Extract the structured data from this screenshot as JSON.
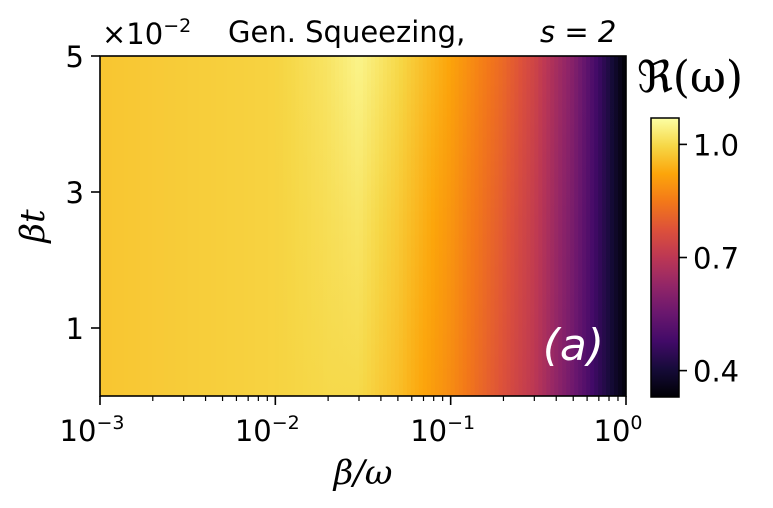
{
  "chart_data": {
    "type": "heatmap",
    "title": "Gen. Squeezing,",
    "title_param": "s = 2",
    "xlabel": "β/ω",
    "ylabel": "βt",
    "x_scale": "log",
    "xlim": [
      0.001,
      1
    ],
    "x_ticks": [
      {
        "value": 0.001,
        "base": "10",
        "exp": "−3"
      },
      {
        "value": 0.01,
        "base": "10",
        "exp": "−2"
      },
      {
        "value": 0.1,
        "base": "10",
        "exp": "−1"
      },
      {
        "value": 1,
        "base": "10",
        "exp": "0"
      }
    ],
    "y_scale": "linear",
    "ylim": [
      0,
      5
    ],
    "y_multiplier": "×10",
    "y_multiplier_exp": "−2",
    "y_ticks": [
      {
        "value": 1,
        "label": "1"
      },
      {
        "value": 3,
        "label": "3"
      },
      {
        "value": 5,
        "label": "5"
      }
    ],
    "colorbar": {
      "label": "ℜ(ω)",
      "colormap": "inferno",
      "range": [
        0.33,
        1.07
      ],
      "ticks": [
        {
          "value": 0.4,
          "label": "0.4"
        },
        {
          "value": 0.7,
          "label": "0.7"
        },
        {
          "value": 1.0,
          "label": "1.0"
        }
      ]
    },
    "field_samples": {
      "x": [
        0.001,
        0.003,
        0.01,
        0.02,
        0.03,
        0.05,
        0.1,
        0.2,
        0.3,
        0.5,
        0.7,
        1.0
      ],
      "value_at_bottom": [
        0.97,
        0.98,
        0.99,
        1.0,
        1.0,
        0.96,
        0.88,
        0.77,
        0.7,
        0.56,
        0.45,
        0.34
      ],
      "value_at_top": [
        0.97,
        0.98,
        0.99,
        1.02,
        1.05,
        1.0,
        0.92,
        0.82,
        0.74,
        0.6,
        0.47,
        0.33
      ]
    },
    "annotation": "(a)",
    "grid": false
  }
}
